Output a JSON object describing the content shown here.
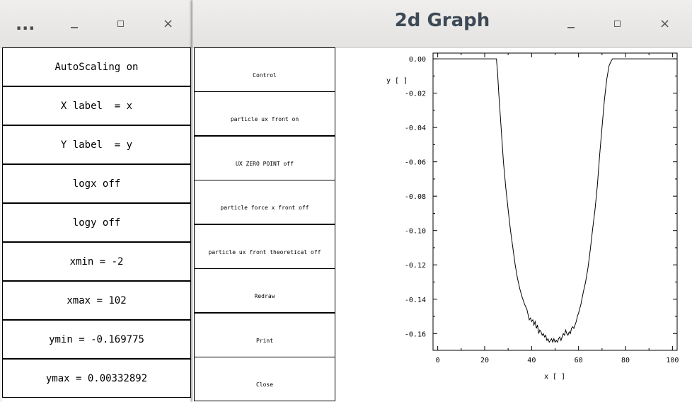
{
  "left_window": {
    "controls": [
      "...",
      "_",
      "□",
      "×"
    ],
    "items": [
      "AutoScaling on",
      "X label  = x",
      "Y label  = y",
      "logx off",
      "logy off",
      "xmin = -2",
      "xmax = 102",
      "ymin = -0.169775",
      "ymax = 0.00332892"
    ]
  },
  "right_window": {
    "title": "2d Graph",
    "controls": [
      "_",
      "□",
      "×"
    ],
    "buttons": [
      "Control",
      "particle ux front on",
      "UX ZERO POINT off",
      "particle force x front off",
      "particle ux front theoretical off",
      "Redraw",
      "Print",
      "Close"
    ]
  },
  "chart_data": {
    "type": "line",
    "xlabel": "x [ ]",
    "ylabel": "y [ ]",
    "xlim": [
      -2,
      102
    ],
    "ylim": [
      -0.169775,
      0.00332892
    ],
    "x_ticks": [
      0,
      20,
      40,
      60,
      80,
      100
    ],
    "x_tick_labels": [
      "0",
      "20",
      "40",
      "60",
      "80",
      "100"
    ],
    "y_ticks": [
      0,
      -0.02,
      -0.04,
      -0.06,
      -0.08,
      -0.1,
      -0.12,
      -0.14,
      -0.16
    ],
    "y_tick_labels": [
      "0.00",
      "-0.02",
      "-0.04",
      "-0.06",
      "-0.08",
      "-0.10",
      "-0.12",
      "-0.14",
      "-0.16"
    ],
    "series": [
      {
        "x": [
          -2,
          25,
          25.5,
          26,
          27,
          28,
          29,
          30,
          31,
          32,
          33,
          34,
          35,
          36,
          37,
          38,
          39,
          39.5,
          40,
          40.5,
          41,
          41.5,
          42,
          42.5,
          43,
          43.5,
          44,
          44.5,
          45,
          45.5,
          46,
          46.5,
          47,
          47.5,
          48,
          48.5,
          49,
          49.5,
          50,
          50.5,
          51,
          51.5,
          52,
          52.5,
          53,
          53.5,
          54,
          54.5,
          55,
          55.5,
          56,
          56.5,
          57,
          57.5,
          58,
          58.5,
          59,
          59.5,
          60,
          61,
          62,
          63,
          64,
          65,
          66,
          67,
          68,
          69,
          70,
          71,
          72,
          73,
          74,
          74.5,
          75,
          102
        ],
        "y": [
          0.0,
          0.0,
          -0.008,
          -0.02,
          -0.04,
          -0.06,
          -0.075,
          -0.088,
          -0.1,
          -0.11,
          -0.12,
          -0.128,
          -0.134,
          -0.139,
          -0.143,
          -0.146,
          -0.152,
          -0.151,
          -0.153,
          -0.152,
          -0.155,
          -0.153,
          -0.157,
          -0.155,
          -0.16,
          -0.158,
          -0.159,
          -0.161,
          -0.16,
          -0.162,
          -0.161,
          -0.164,
          -0.163,
          -0.165,
          -0.164,
          -0.163,
          -0.165,
          -0.163,
          -0.165,
          -0.164,
          -0.165,
          -0.163,
          -0.162,
          -0.164,
          -0.162,
          -0.16,
          -0.161,
          -0.158,
          -0.16,
          -0.161,
          -0.159,
          -0.16,
          -0.157,
          -0.156,
          -0.157,
          -0.155,
          -0.153,
          -0.15,
          -0.148,
          -0.143,
          -0.136,
          -0.13,
          -0.122,
          -0.111,
          -0.099,
          -0.088,
          -0.074,
          -0.056,
          -0.04,
          -0.024,
          -0.012,
          -0.004,
          -0.001,
          0.0,
          0.0,
          0.0
        ]
      }
    ],
    "grid": false
  }
}
